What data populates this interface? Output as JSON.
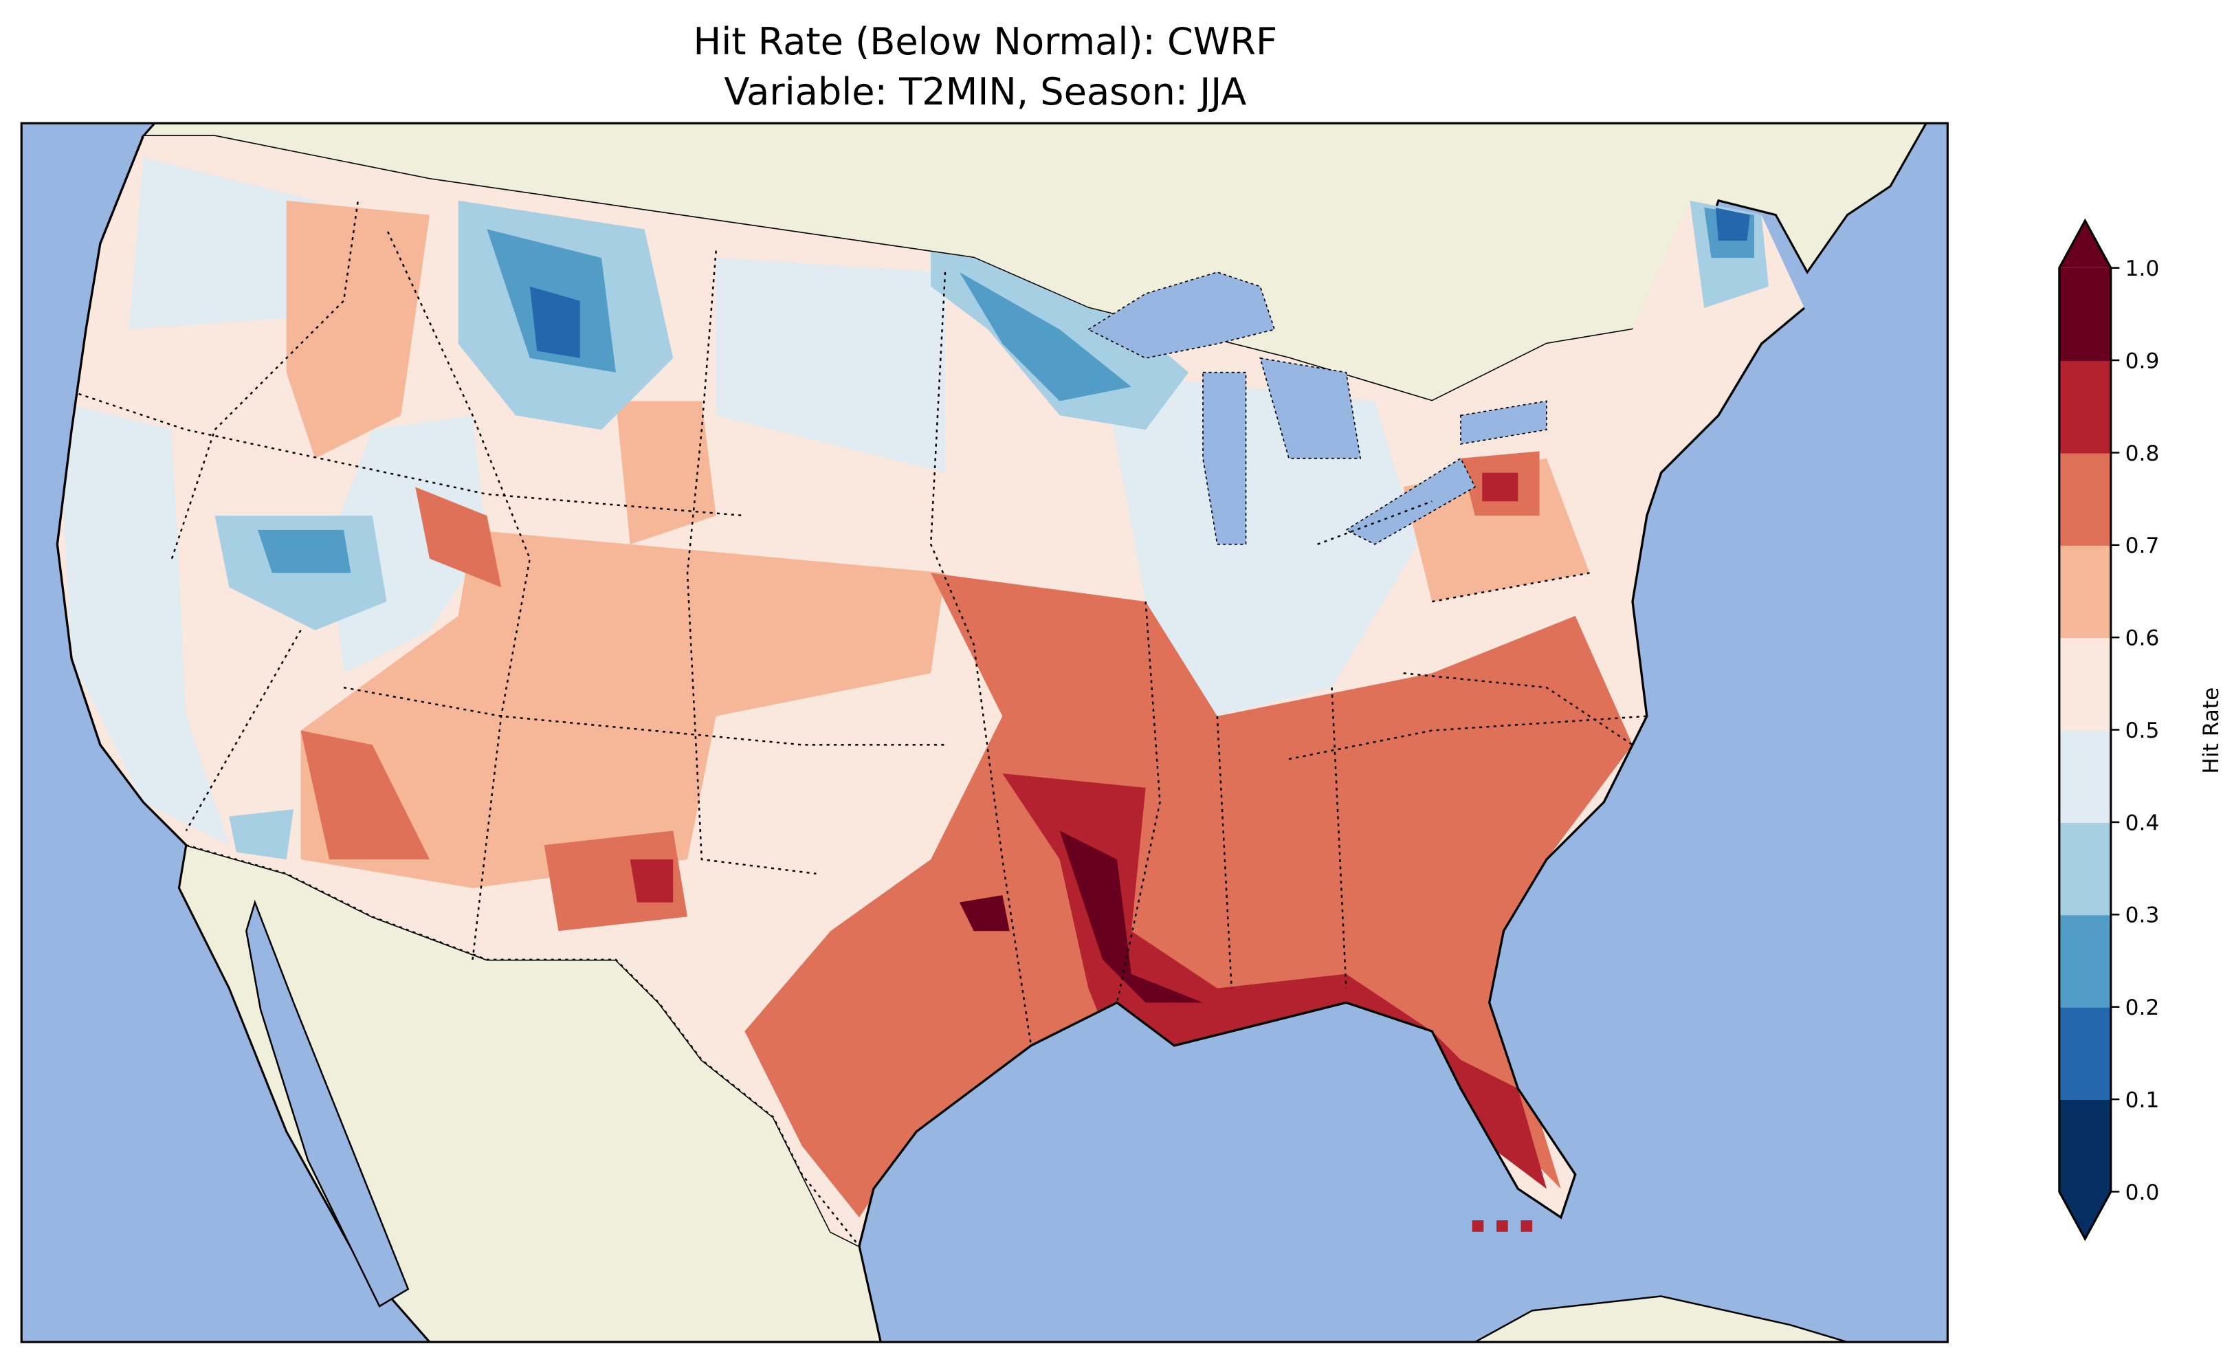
{
  "title": {
    "line1": "Hit Rate (Below Normal): CWRF",
    "line2": "Variable: T2MIN, Season: JJA"
  },
  "map": {
    "ocean_color": "#97b6e1",
    "land_color": "#efefdb"
  },
  "colorbar": {
    "label": "Hit Rate",
    "extend": "both",
    "ticks": [
      "0.0",
      "0.1",
      "0.2",
      "0.3",
      "0.4",
      "0.5",
      "0.6",
      "0.7",
      "0.8",
      "0.9",
      "1.0"
    ],
    "range": [
      0.0,
      1.0
    ],
    "colors": [
      "#053061",
      "#2467ad",
      "#529dc8",
      "#a7cfe4",
      "#e0ecf2",
      "#fae7de",
      "#f6b799",
      "#de7158",
      "#b3222e",
      "#67001f"
    ]
  }
}
